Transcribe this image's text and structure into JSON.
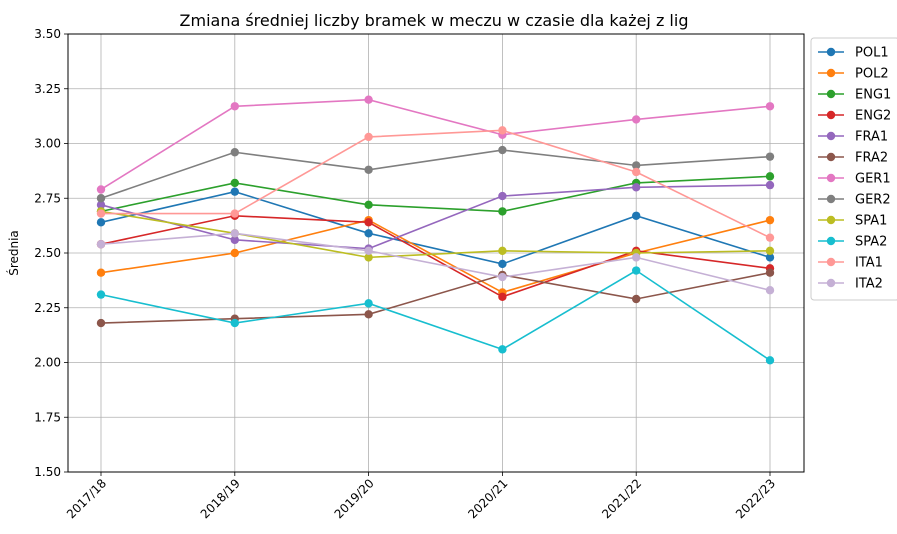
{
  "chart_data": {
    "type": "line",
    "title": "Zmiana średniej liczby bramek w meczu w czasie dla każej z lig",
    "xlabel": "",
    "ylabel": "Średnia",
    "categories": [
      "2017/18",
      "2018/19",
      "2019/20",
      "2020/21",
      "2021/22",
      "2022/23"
    ],
    "ylim": [
      1.5,
      3.5
    ],
    "yticks": [
      "1.50",
      "1.75",
      "2.00",
      "2.25",
      "2.50",
      "2.75",
      "3.00",
      "3.25",
      "3.50"
    ],
    "grid": true,
    "legend_position": "outside-right",
    "series": [
      {
        "name": "POL1",
        "color": "#1f77b4",
        "values": [
          2.64,
          2.78,
          2.59,
          2.45,
          2.67,
          2.48
        ]
      },
      {
        "name": "POL2",
        "color": "#ff7f0e",
        "values": [
          2.41,
          2.5,
          2.65,
          2.32,
          2.5,
          2.65
        ]
      },
      {
        "name": "ENG1",
        "color": "#2ca02c",
        "values": [
          2.69,
          2.82,
          2.72,
          2.69,
          2.82,
          2.85
        ]
      },
      {
        "name": "ENG2",
        "color": "#d62728",
        "values": [
          2.54,
          2.67,
          2.64,
          2.3,
          2.51,
          2.43
        ]
      },
      {
        "name": "FRA1",
        "color": "#9467bd",
        "values": [
          2.72,
          2.56,
          2.52,
          2.76,
          2.8,
          2.81
        ]
      },
      {
        "name": "FRA2",
        "color": "#8c564b",
        "values": [
          2.18,
          2.2,
          2.22,
          2.4,
          2.29,
          2.41
        ]
      },
      {
        "name": "GER1",
        "color": "#e377c2",
        "values": [
          2.79,
          3.17,
          3.2,
          3.04,
          3.11,
          3.17
        ]
      },
      {
        "name": "GER2",
        "color": "#7f7f7f",
        "values": [
          2.75,
          2.96,
          2.88,
          2.97,
          2.9,
          2.94
        ]
      },
      {
        "name": "SPA1",
        "color": "#bcbd22",
        "values": [
          2.69,
          2.59,
          2.48,
          2.51,
          2.5,
          2.51
        ]
      },
      {
        "name": "SPA2",
        "color": "#17becf",
        "values": [
          2.31,
          2.18,
          2.27,
          2.06,
          2.42,
          2.01
        ]
      },
      {
        "name": "ITA1",
        "color": "#ff9896",
        "values": [
          2.68,
          2.68,
          3.03,
          3.06,
          2.87,
          2.57
        ]
      },
      {
        "name": "ITA2",
        "color": "#c5b0d5",
        "values": [
          2.54,
          2.59,
          2.51,
          2.39,
          2.48,
          2.33
        ]
      }
    ]
  }
}
